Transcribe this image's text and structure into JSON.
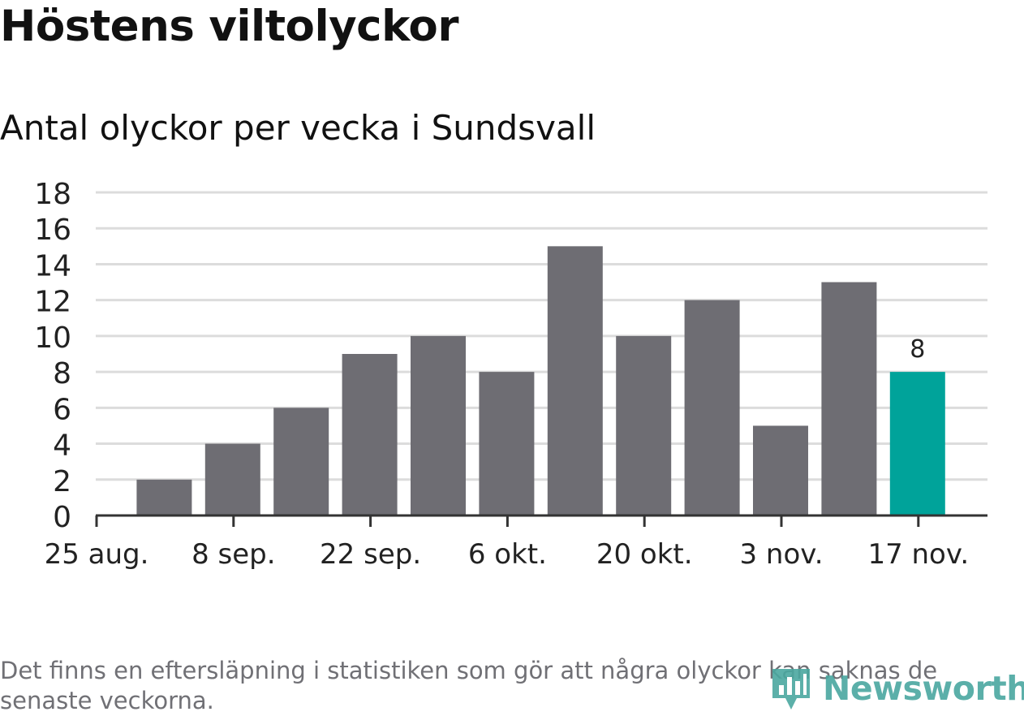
{
  "header": {
    "title": "Höstens viltolyckor",
    "subtitle": "Antal olyckor per vecka i Sundsvall"
  },
  "chart_data": {
    "type": "bar",
    "title": "Höstens viltolyckor",
    "subtitle": "Antal olyckor per vecka i Sundsvall",
    "xlabel": "",
    "ylabel": "",
    "ylim": [
      0,
      18
    ],
    "yticks": [
      0,
      2,
      4,
      6,
      8,
      10,
      12,
      14,
      16,
      18
    ],
    "xtick_labels": [
      "25 aug.",
      "8 sep.",
      "22 sep.",
      "6 okt.",
      "20 okt.",
      "3 nov.",
      "17 nov."
    ],
    "values": [
      2,
      4,
      6,
      9,
      10,
      8,
      15,
      10,
      12,
      5,
      13,
      8
    ],
    "highlight_index": 11,
    "highlight_label": "8",
    "grid": true,
    "colors": {
      "bar": "#6e6d73",
      "highlight": "#00a39a",
      "grid": "#dcdcdc",
      "axis": "#333333"
    }
  },
  "footer": {
    "note": "Det finns en eftersläpning i statistiken som gör att några olyckor kan saknas de senaste veckorna.",
    "logo_text": "Newsworthy",
    "logo_icon": "bar-chart-pin-icon"
  }
}
